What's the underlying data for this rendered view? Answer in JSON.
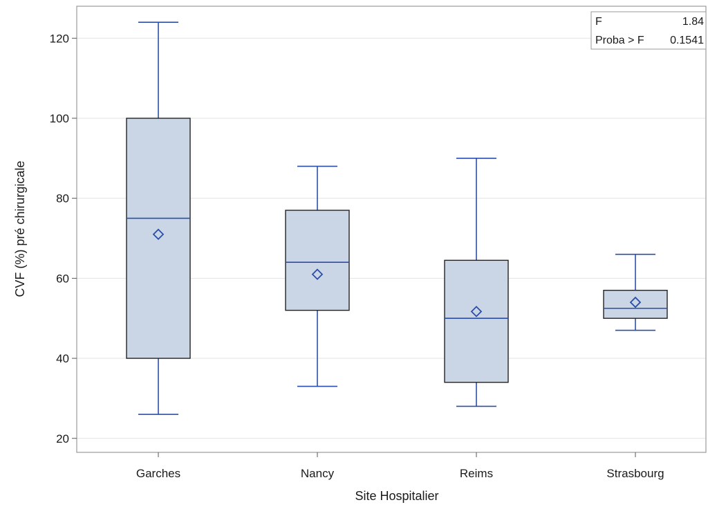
{
  "chart_data": {
    "type": "box",
    "xlabel": "Site Hospitalier",
    "ylabel": "CVF (%) pré chirurgicale",
    "ylim": [
      16.5,
      128
    ],
    "yticks": [
      20,
      40,
      60,
      80,
      100,
      120
    ],
    "grid": true,
    "categories": [
      "Garches",
      "Nancy",
      "Reims",
      "Strasbourg"
    ],
    "boxes": [
      {
        "category": "Garches",
        "min": 26,
        "q1": 40,
        "median": 75,
        "q3": 100,
        "max": 124,
        "mean": 71
      },
      {
        "category": "Nancy",
        "min": 33,
        "q1": 52,
        "median": 64,
        "q3": 77,
        "max": 88,
        "mean": 61
      },
      {
        "category": "Reims",
        "min": 28,
        "q1": 34,
        "median": 50,
        "q3": 64.5,
        "max": 90,
        "mean": 51.7
      },
      {
        "category": "Strasbourg",
        "min": 47,
        "q1": 50,
        "median": 52.5,
        "q3": 57,
        "max": 66,
        "mean": 54
      }
    ],
    "inset": {
      "rows": [
        {
          "label": "F",
          "value": "1.84"
        },
        {
          "label": "Proba > F",
          "value": "0.1541"
        }
      ],
      "placement": "top-right"
    },
    "colors": {
      "box_fill": "#cad6e6",
      "box_border": "#222222",
      "whisker": "#2a4ea8",
      "median": "#2a4ea8",
      "mean_marker": "#2a4ea8",
      "grid": "#e3e3e3",
      "frame": "#9a9a9a"
    }
  }
}
